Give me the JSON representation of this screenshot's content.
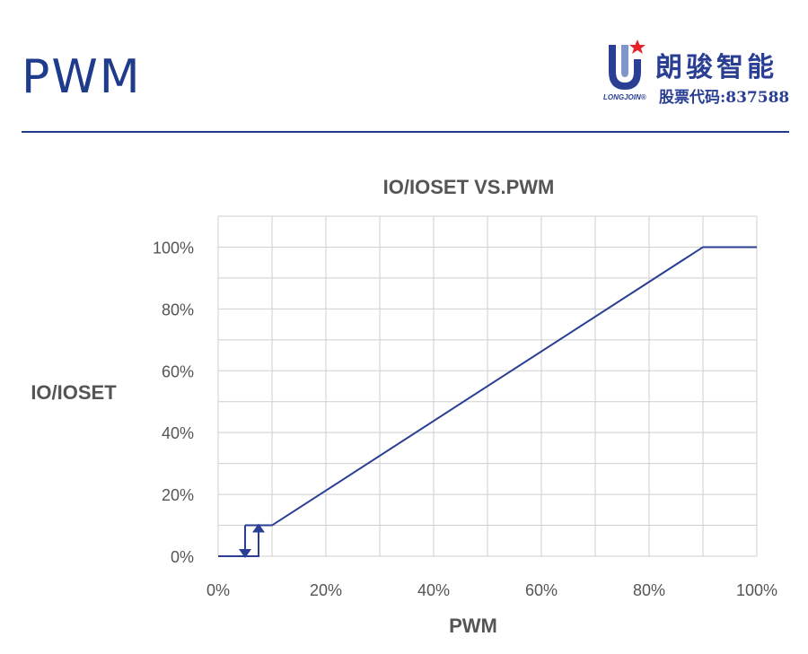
{
  "header": {
    "title": "PWM",
    "brand_name": "朗骏智能",
    "brand_stock": "股票代码:837588",
    "brand_en": "LONGJOIN®"
  },
  "colors": {
    "accent": "#1e3b8c",
    "line": "#2a3f93",
    "grid": "#cfcfcf",
    "text": "#555555",
    "star": "#e2242a"
  },
  "chart_data": {
    "type": "line",
    "title": "IO/IOSET VS.PWM",
    "xlabel": "PWM",
    "ylabel": "IO/IOSET",
    "xlim": [
      0,
      100
    ],
    "ylim": [
      0,
      110
    ],
    "grid": true,
    "x_ticks": [
      0,
      20,
      40,
      60,
      80,
      100
    ],
    "x_tick_labels": [
      "0%",
      "20%",
      "40%",
      "60%",
      "80%",
      "100%"
    ],
    "y_ticks": [
      0,
      20,
      40,
      60,
      80,
      100
    ],
    "y_tick_labels": [
      "0%",
      "20%",
      "40%",
      "60%",
      "80%",
      "100%"
    ],
    "series": [
      {
        "x": [
          0,
          7.5,
          7.5,
          5,
          5,
          10,
          90,
          100
        ],
        "y": [
          0,
          0,
          10,
          10,
          10,
          10,
          100,
          100
        ]
      }
    ],
    "hysteresis": {
      "down_arrow": {
        "x": 5,
        "from": 10,
        "to": 0
      },
      "up_arrow": {
        "x": 7.5,
        "from": 0,
        "to": 10
      }
    }
  }
}
